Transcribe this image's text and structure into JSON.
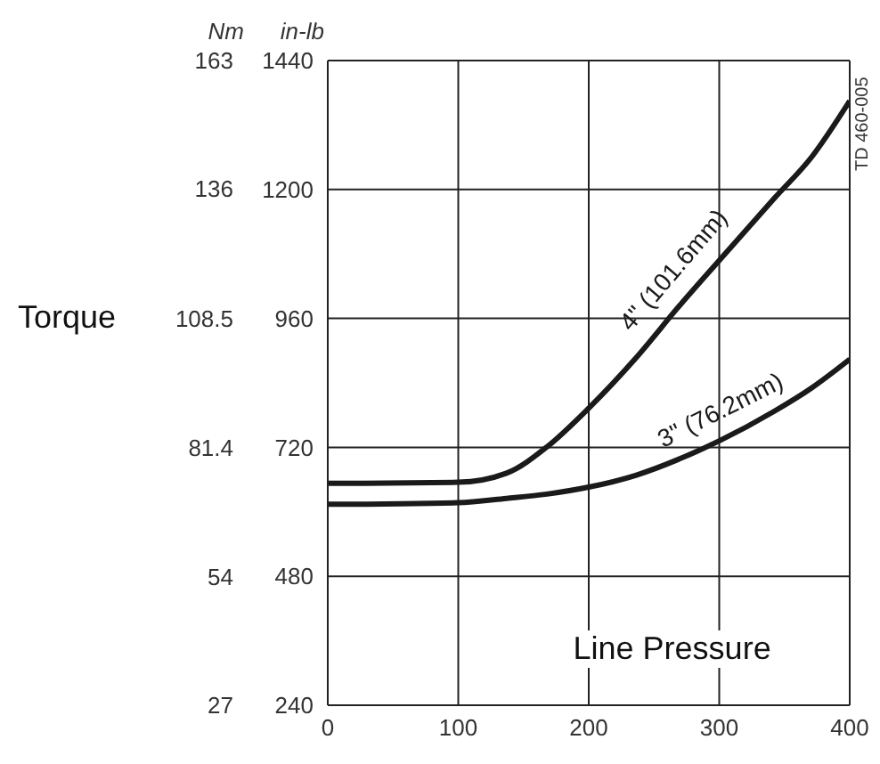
{
  "chart_data": {
    "type": "line",
    "ylabel": "in-lb",
    "y2label": "Nm",
    "xlabel": "Line Pressure",
    "annotations": [
      "Torque",
      "TD 460-005"
    ],
    "x": [
      0,
      100,
      137,
      168,
      200,
      236,
      270,
      300,
      342,
      371,
      400
    ],
    "series": [
      {
        "name": "4\" (101.6mm)",
        "color": "#1a1a1a",
        "values": [
          653,
          655,
          672,
          721,
          793,
          886,
          985,
          1068,
          1183,
          1261,
          1365
        ]
      },
      {
        "name": "3\" (76.2mm)",
        "color": "#1a1a1a",
        "values": [
          614,
          617,
          625,
          633,
          646,
          668,
          699,
          732,
          787,
          831,
          884
        ]
      }
    ],
    "xlim": [
      0,
      400
    ],
    "xticks": [
      0,
      100,
      200,
      300,
      400
    ],
    "ylim": [
      240,
      1440
    ],
    "yticks": [
      240,
      480,
      720,
      960,
      1200,
      1440
    ],
    "y2lim": [
      27,
      163
    ],
    "y2ticks": [
      27,
      54,
      81.4,
      108.5,
      136,
      163
    ],
    "grid": true,
    "marker": "none",
    "line_style": "solid"
  }
}
